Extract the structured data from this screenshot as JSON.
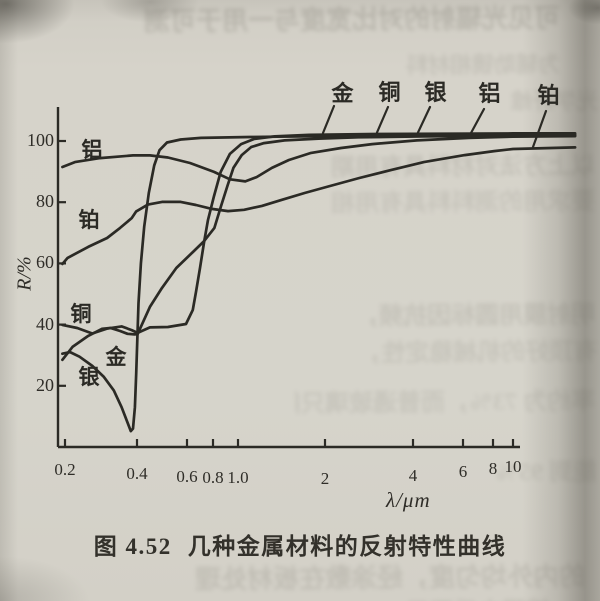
{
  "figure": {
    "caption_prefix": "图 4.52",
    "caption_text": "几种金属材料的反射特性曲线",
    "x_axis_label": "λ/μm",
    "y_axis_label": "R/%"
  },
  "chart_data": {
    "type": "line",
    "title": "图 4.52 几种金属材料的反射特性曲线",
    "xlabel": "λ/μm",
    "ylabel": "R/%",
    "x_scale": "log",
    "xlim": [
      0.2,
      10
    ],
    "ylim": [
      0,
      105
    ],
    "grid": false,
    "x_ticks": [
      0.2,
      0.4,
      0.6,
      0.8,
      1.0,
      2,
      4,
      6,
      8,
      10
    ],
    "x_tick_labels": [
      "0.2",
      "0.4",
      "0.6",
      "0.8",
      "1.0",
      "2",
      "4",
      "6",
      "8",
      "10"
    ],
    "y_ticks": [
      100,
      80,
      60,
      40,
      20
    ],
    "y_tick_labels": [
      "100",
      "80",
      "60",
      "40",
      "20"
    ],
    "legend_position": "labels-on-curves-and-top",
    "top_legend": [
      {
        "label": "金"
      },
      {
        "label": "铜"
      },
      {
        "label": "银"
      },
      {
        "label": "铝"
      },
      {
        "label": "铂"
      }
    ],
    "series": [
      {
        "name": "铝",
        "name_en": "aluminum",
        "points": [
          [
            0.195,
            91.5
          ],
          [
            0.22,
            93.1
          ],
          [
            0.28,
            94.4
          ],
          [
            0.385,
            95.3
          ],
          [
            0.444,
            95.3
          ],
          [
            0.514,
            94.6
          ],
          [
            0.62,
            92.8
          ],
          [
            0.807,
            89.9
          ],
          [
            0.93,
            87.5
          ],
          [
            1.06,
            86.8
          ],
          [
            1.16,
            88.2
          ],
          [
            1.31,
            91.2
          ],
          [
            1.5,
            93.8
          ],
          [
            1.79,
            96.1
          ],
          [
            2.27,
            97.7
          ],
          [
            2.9,
            99.0
          ],
          [
            4.13,
            100.2
          ],
          [
            6.35,
            101.0
          ],
          [
            10,
            101.4
          ],
          [
            20,
            101.6
          ]
        ]
      },
      {
        "name": "铂",
        "name_en": "platinum",
        "points": [
          [
            0.195,
            59.8
          ],
          [
            0.205,
            61.8
          ],
          [
            0.25,
            65.4
          ],
          [
            0.3,
            68.3
          ],
          [
            0.34,
            71.6
          ],
          [
            0.38,
            74.8
          ],
          [
            0.397,
            77.0
          ],
          [
            0.437,
            79.2
          ],
          [
            0.49,
            80.1
          ],
          [
            0.57,
            80.1
          ],
          [
            0.663,
            79.1
          ],
          [
            0.79,
            77.8
          ],
          [
            0.915,
            77.1
          ],
          [
            1.05,
            77.5
          ],
          [
            1.21,
            78.8
          ],
          [
            1.41,
            80.7
          ],
          [
            1.7,
            83.0
          ],
          [
            2.08,
            85.3
          ],
          [
            2.62,
            87.9
          ],
          [
            3.36,
            90.5
          ],
          [
            4.37,
            93.1
          ],
          [
            6.1,
            95.4
          ],
          [
            8.1,
            96.7
          ],
          [
            10,
            97.4
          ],
          [
            20,
            97.9
          ]
        ]
      },
      {
        "name": "铜",
        "name_en": "copper",
        "points": [
          [
            0.195,
            39.9
          ],
          [
            0.225,
            38.9
          ],
          [
            0.26,
            37.1
          ],
          [
            0.3,
            38.7
          ],
          [
            0.345,
            39.4
          ],
          [
            0.38,
            38.2
          ],
          [
            0.402,
            37.3
          ],
          [
            0.444,
            39.1
          ],
          [
            0.514,
            39.2
          ],
          [
            0.595,
            40.2
          ],
          [
            0.64,
            44.8
          ],
          [
            0.663,
            50.7
          ],
          [
            0.693,
            58.5
          ],
          [
            0.725,
            67.0
          ],
          [
            0.757,
            74.2
          ],
          [
            0.807,
            82.0
          ],
          [
            0.857,
            89.9
          ],
          [
            0.93,
            95.8
          ],
          [
            1.025,
            99.0
          ],
          [
            1.14,
            100.7
          ],
          [
            1.34,
            101.5
          ],
          [
            1.76,
            102.0
          ],
          [
            3.0,
            102.3
          ],
          [
            10,
            102.5
          ],
          [
            20,
            102.5
          ]
        ]
      },
      {
        "name": "金",
        "name_en": "gold",
        "points": [
          [
            0.195,
            28.5
          ],
          [
            0.215,
            32.7
          ],
          [
            0.25,
            36.3
          ],
          [
            0.285,
            38.6
          ],
          [
            0.31,
            38.9
          ],
          [
            0.34,
            37.9
          ],
          [
            0.365,
            37.0
          ],
          [
            0.39,
            36.8
          ],
          [
            0.402,
            36.9
          ],
          [
            0.444,
            45.8
          ],
          [
            0.49,
            52.0
          ],
          [
            0.55,
            58.5
          ],
          [
            0.64,
            63.7
          ],
          [
            0.725,
            67.3
          ],
          [
            0.81,
            71.6
          ],
          [
            0.86,
            78.8
          ],
          [
            0.91,
            85.3
          ],
          [
            0.96,
            91.2
          ],
          [
            1.03,
            95.4
          ],
          [
            1.11,
            98.0
          ],
          [
            1.23,
            99.3
          ],
          [
            1.45,
            100.2
          ],
          [
            1.9,
            100.8
          ],
          [
            2.6,
            101.2
          ],
          [
            4.3,
            101.5
          ],
          [
            10,
            101.7
          ],
          [
            20,
            101.8
          ]
        ]
      },
      {
        "name": "银",
        "name_en": "silver",
        "points": [
          [
            0.195,
            30.5
          ],
          [
            0.21,
            31.0
          ],
          [
            0.23,
            29.5
          ],
          [
            0.26,
            26.5
          ],
          [
            0.29,
            23.0
          ],
          [
            0.32,
            18.5
          ],
          [
            0.345,
            13.0
          ],
          [
            0.365,
            8.0
          ],
          [
            0.377,
            5.2
          ],
          [
            0.385,
            6.0
          ],
          [
            0.392,
            13.0
          ],
          [
            0.397,
            24.0
          ],
          [
            0.401,
            35.0
          ],
          [
            0.405,
            47.0
          ],
          [
            0.413,
            60.0
          ],
          [
            0.424,
            72.0
          ],
          [
            0.44,
            83.0
          ],
          [
            0.46,
            92.0
          ],
          [
            0.48,
            97.0
          ],
          [
            0.51,
            99.5
          ],
          [
            0.57,
            100.5
          ],
          [
            0.7,
            101.0
          ],
          [
            1.1,
            101.3
          ],
          [
            2.0,
            101.6
          ],
          [
            4.0,
            101.8
          ],
          [
            10,
            102.0
          ],
          [
            20,
            102.1
          ]
        ]
      }
    ]
  },
  "background_bleedthrough": {
    "lines": [
      "可见光辐射的对比宽度与一用于可测",
      "为辅助镜相材料",
      "光学纤维",
      "以上方法对材料具有用期",
      "要求用的测料料具有用相（同能",
      "明射膜用圆标因抗频，保护",
      "有顶好的机械稳定性，比",
      "率约为 73%，而普通玻璃只能透过",
      "能到 95%",
      "的内外均匀度，经涂敷在板材处理",
      "镀膜之后再用"
    ]
  }
}
